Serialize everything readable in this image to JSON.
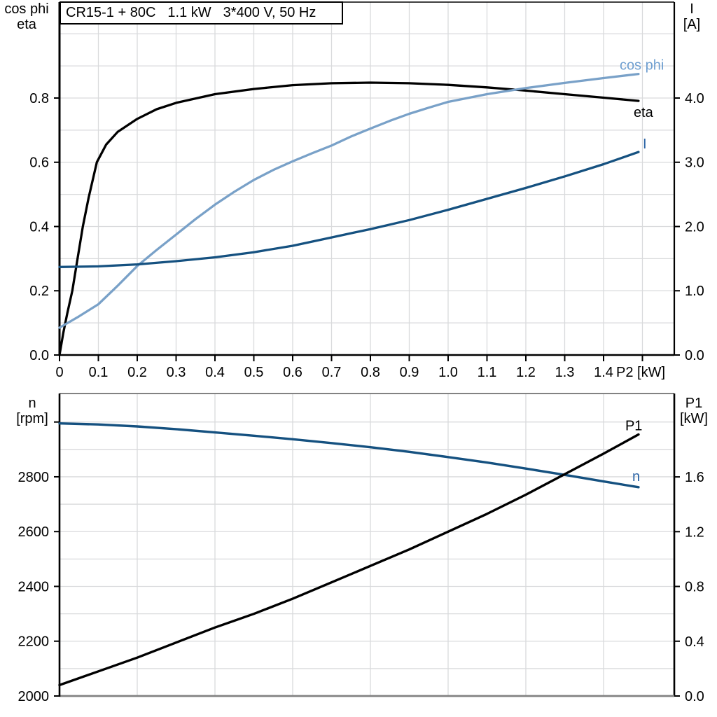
{
  "page": {
    "background": "#ffffff"
  },
  "title": {
    "model": "CR15-1 + 80C",
    "power": "1.1 kW",
    "supply": "3*400 V, 50 Hz"
  },
  "corner_labels": {
    "top_left": [
      "cos phi",
      "eta"
    ],
    "top_right": [
      "I",
      "[A]"
    ],
    "bottom_left": [
      "n",
      "[rpm]"
    ],
    "bottom_right": [
      "P1",
      "[kW]"
    ]
  },
  "colors": {
    "black": "#000000",
    "cos_phi_curve": "#79a1c8",
    "cos_phi_label": "#6f9fd0",
    "dark_blue_curve": "#155180",
    "dark_blue_label": "#2a63a5",
    "grid": "#d9dadc",
    "frame_gray": "#828282"
  },
  "chart_data": [
    {
      "type": "line",
      "name": "efficiency-cosphi-current-vs-p2",
      "title": "CR15-1 + 80C 1.1 kW 3*400 V, 50 Hz",
      "grid": true,
      "x_axis": {
        "label": "P2 [kW]",
        "min": 0,
        "max": 1.582,
        "grid_step": 0.1,
        "ticks": [
          {
            "v": 0,
            "label": "0"
          },
          {
            "v": 0.1,
            "label": "0.1"
          },
          {
            "v": 0.2,
            "label": "0.2"
          },
          {
            "v": 0.3,
            "label": "0.3"
          },
          {
            "v": 0.4,
            "label": "0.4"
          },
          {
            "v": 0.5,
            "label": "0.5"
          },
          {
            "v": 0.6,
            "label": "0.6"
          },
          {
            "v": 0.7,
            "label": "0.7"
          },
          {
            "v": 0.8,
            "label": "0.8"
          },
          {
            "v": 0.9,
            "label": "0.9"
          },
          {
            "v": 1.0,
            "label": "1.0"
          },
          {
            "v": 1.1,
            "label": "1.1"
          },
          {
            "v": 1.2,
            "label": "1.2"
          },
          {
            "v": 1.3,
            "label": "1.3"
          },
          {
            "v": 1.4,
            "label": "1.4"
          },
          {
            "v": 1.5,
            "label": ""
          }
        ]
      },
      "y_left": {
        "name": "cos phi / eta",
        "min": 0,
        "max": 1.0986,
        "grid_step": 0.1,
        "ticks": [
          {
            "v": 0,
            "label": "0.0"
          },
          {
            "v": 0.2,
            "label": "0.2"
          },
          {
            "v": 0.4,
            "label": "0.4"
          },
          {
            "v": 0.6,
            "label": "0.6"
          },
          {
            "v": 0.8,
            "label": "0.8"
          }
        ]
      },
      "y_right": {
        "name": "I [A]",
        "min": 0,
        "max": 5.493,
        "ticks": [
          {
            "v": 0,
            "label": "0.0"
          },
          {
            "v": 1,
            "label": "1.0"
          },
          {
            "v": 2,
            "label": "2.0"
          },
          {
            "v": 3,
            "label": "3.0"
          },
          {
            "v": 4,
            "label": "4.0"
          }
        ]
      },
      "series": [
        {
          "name": "eta",
          "axis": "left",
          "color": "#000000",
          "width": 3.3,
          "label": {
            "text": "eta",
            "color": "#000000",
            "dx": -7,
            "dy": 23
          },
          "points": [
            [
              0,
              0
            ],
            [
              0.01,
              0.07
            ],
            [
              0.02,
              0.13
            ],
            [
              0.033,
              0.2
            ],
            [
              0.045,
              0.29
            ],
            [
              0.06,
              0.4
            ],
            [
              0.075,
              0.49
            ],
            [
              0.096,
              0.6
            ],
            [
              0.12,
              0.655
            ],
            [
              0.15,
              0.695
            ],
            [
              0.2,
              0.735
            ],
            [
              0.25,
              0.765
            ],
            [
              0.3,
              0.785
            ],
            [
              0.4,
              0.812
            ],
            [
              0.5,
              0.828
            ],
            [
              0.6,
              0.84
            ],
            [
              0.7,
              0.846
            ],
            [
              0.8,
              0.848
            ],
            [
              0.9,
              0.846
            ],
            [
              1.0,
              0.841
            ],
            [
              1.1,
              0.833
            ],
            [
              1.2,
              0.823
            ],
            [
              1.3,
              0.812
            ],
            [
              1.4,
              0.801
            ],
            [
              1.49,
              0.791
            ]
          ]
        },
        {
          "name": "cos phi",
          "axis": "left",
          "color": "#79a1c8",
          "width": 3.3,
          "label": {
            "text": "cos phi",
            "color": "#6f9fd0",
            "dx": -27,
            "dy": -6
          },
          "points": [
            [
              0,
              0.085
            ],
            [
              0.05,
              0.12
            ],
            [
              0.1,
              0.158
            ],
            [
              0.15,
              0.216
            ],
            [
              0.2,
              0.277
            ],
            [
              0.25,
              0.327
            ],
            [
              0.3,
              0.375
            ],
            [
              0.35,
              0.423
            ],
            [
              0.4,
              0.468
            ],
            [
              0.45,
              0.508
            ],
            [
              0.5,
              0.545
            ],
            [
              0.55,
              0.576
            ],
            [
              0.6,
              0.603
            ],
            [
              0.65,
              0.628
            ],
            [
              0.7,
              0.652
            ],
            [
              0.75,
              0.68
            ],
            [
              0.8,
              0.705
            ],
            [
              0.85,
              0.729
            ],
            [
              0.9,
              0.751
            ],
            [
              0.95,
              0.77
            ],
            [
              1.0,
              0.788
            ],
            [
              1.1,
              0.812
            ],
            [
              1.2,
              0.831
            ],
            [
              1.3,
              0.847
            ],
            [
              1.4,
              0.862
            ],
            [
              1.49,
              0.875
            ]
          ]
        },
        {
          "name": "I",
          "axis": "right",
          "color": "#155180",
          "width": 3.3,
          "label": {
            "text": "I",
            "color": "#2a63a5",
            "dx": 6,
            "dy": -5
          },
          "points": [
            [
              0,
              1.37
            ],
            [
              0.1,
              1.38
            ],
            [
              0.2,
              1.41
            ],
            [
              0.3,
              1.46
            ],
            [
              0.4,
              1.52
            ],
            [
              0.5,
              1.6
            ],
            [
              0.6,
              1.7
            ],
            [
              0.7,
              1.83
            ],
            [
              0.8,
              1.96
            ],
            [
              0.9,
              2.1
            ],
            [
              1.0,
              2.26
            ],
            [
              1.1,
              2.43
            ],
            [
              1.2,
              2.6
            ],
            [
              1.3,
              2.78
            ],
            [
              1.4,
              2.97
            ],
            [
              1.49,
              3.16
            ]
          ]
        }
      ]
    },
    {
      "type": "line",
      "name": "speed-p1-vs-p2",
      "title": "",
      "grid": true,
      "x_axis": {
        "label": "",
        "min": 0,
        "max": 1.582,
        "grid_step": 0.2,
        "ticks": []
      },
      "y_left": {
        "name": "n [rpm]",
        "min": 2000,
        "max": 3104,
        "grid_step": 100,
        "ticks": [
          {
            "v": 2000,
            "label": "2000"
          },
          {
            "v": 2200,
            "label": "2200"
          },
          {
            "v": 2400,
            "label": "2400"
          },
          {
            "v": 2600,
            "label": "2600"
          },
          {
            "v": 2800,
            "label": "2800"
          },
          {
            "v": 3000,
            "label": ""
          }
        ]
      },
      "y_right": {
        "name": "P1 [kW]",
        "min": 0,
        "max": 2.209,
        "ticks": [
          {
            "v": 0,
            "label": "0.0"
          },
          {
            "v": 0.4,
            "label": "0.4"
          },
          {
            "v": 0.8,
            "label": "0.8"
          },
          {
            "v": 1.2,
            "label": "1.2"
          },
          {
            "v": 1.6,
            "label": "1.6"
          }
        ]
      },
      "series": [
        {
          "name": "n",
          "axis": "left",
          "color": "#155180",
          "width": 3.4,
          "label": {
            "text": "n",
            "color": "#2a63a5",
            "dx": -9,
            "dy": -9
          },
          "points": [
            [
              0,
              2995
            ],
            [
              0.1,
              2991
            ],
            [
              0.2,
              2984
            ],
            [
              0.3,
              2974
            ],
            [
              0.4,
              2962
            ],
            [
              0.5,
              2950
            ],
            [
              0.6,
              2937
            ],
            [
              0.7,
              2923
            ],
            [
              0.8,
              2908
            ],
            [
              0.9,
              2891
            ],
            [
              1.0,
              2872
            ],
            [
              1.1,
              2852
            ],
            [
              1.2,
              2830
            ],
            [
              1.3,
              2807
            ],
            [
              1.4,
              2783
            ],
            [
              1.49,
              2762
            ]
          ]
        },
        {
          "name": "P1",
          "axis": "right",
          "color": "#000000",
          "width": 3.4,
          "label": {
            "text": "P1",
            "color": "#000000",
            "dx": -19,
            "dy": -6
          },
          "points": [
            [
              0,
              0.08
            ],
            [
              0.1,
              0.18
            ],
            [
              0.2,
              0.28
            ],
            [
              0.3,
              0.39
            ],
            [
              0.4,
              0.5
            ],
            [
              0.5,
              0.6
            ],
            [
              0.6,
              0.71
            ],
            [
              0.7,
              0.83
            ],
            [
              0.8,
              0.95
            ],
            [
              0.9,
              1.07
            ],
            [
              1.0,
              1.2
            ],
            [
              1.1,
              1.33
            ],
            [
              1.2,
              1.47
            ],
            [
              1.3,
              1.62
            ],
            [
              1.4,
              1.77
            ],
            [
              1.49,
              1.91
            ]
          ]
        }
      ]
    }
  ]
}
